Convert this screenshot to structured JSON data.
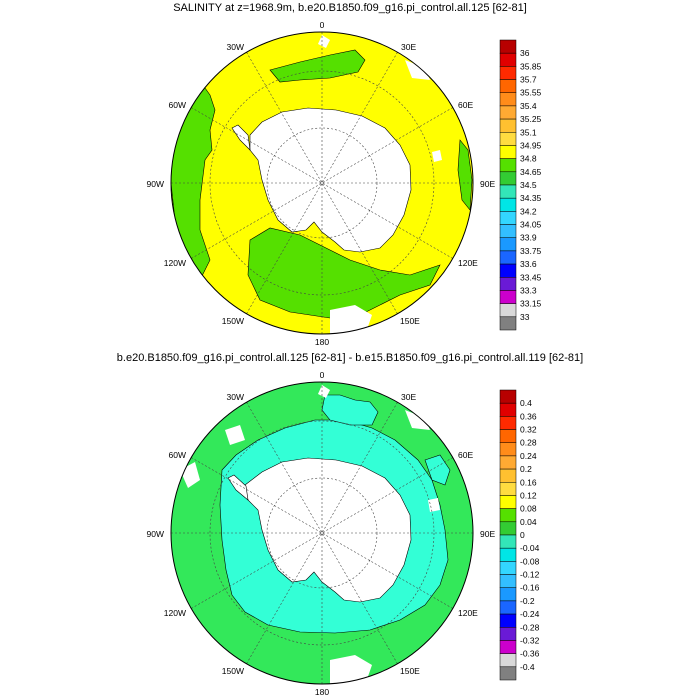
{
  "panels": [
    {
      "title": "SALINITY at z=1968.9m, b.e20.B1850.f09_g16.pi_control.all.125 [62-81]",
      "lon_labels": {
        "top": "0",
        "top_right": "30E",
        "right_upper": "60E",
        "right": "90E",
        "right_lower": "120E",
        "bottom_right": "150E",
        "bottom": "180",
        "bottom_left": "150W",
        "left_lower": "120W",
        "left": "90W",
        "left_upper": "60W",
        "top_left": "30W"
      },
      "colorbar": {
        "colors": [
          "#b80000",
          "#e00000",
          "#ff2a00",
          "#ff6600",
          "#ff8c1a",
          "#ffaa33",
          "#ffc030",
          "#ffdc40",
          "#ffff00",
          "#55e000",
          "#33cc33",
          "#33e6b8",
          "#00e6e6",
          "#33d6ff",
          "#33bfff",
          "#1a99ff",
          "#1a66ff",
          "#0000ff",
          "#6a1ad6",
          "#cc00cc",
          "#d9d9d9",
          "#808080"
        ],
        "labels": [
          "36",
          "35.85",
          "35.7",
          "35.55",
          "35.4",
          "35.25",
          "35.1",
          "34.95",
          "34.8",
          "34.65",
          "34.5",
          "34.35",
          "34.2",
          "34.05",
          "33.9",
          "33.75",
          "33.6",
          "33.45",
          "33.3",
          "33.15",
          "33"
        ]
      }
    },
    {
      "title": "b.e20.B1850.f09_g16.pi_control.all.125 [62-81] - b.e15.B1850.f09_g16.pi_control.all.119 [62-81]",
      "lon_labels": {
        "top": "0",
        "top_right": "30E",
        "right_upper": "60E",
        "right": "90E",
        "right_lower": "120E",
        "bottom_right": "150E",
        "bottom": "180",
        "bottom_left": "150W",
        "left_lower": "120W",
        "left": "90W",
        "left_upper": "60W",
        "top_left": "30W"
      },
      "colorbar": {
        "colors": [
          "#b80000",
          "#e00000",
          "#ff2a00",
          "#ff6600",
          "#ff8c1a",
          "#ffaa33",
          "#ffc030",
          "#ffdc40",
          "#ffff00",
          "#55e000",
          "#33cc33",
          "#33e6b8",
          "#00e6e6",
          "#33d6ff",
          "#33bfff",
          "#1a99ff",
          "#1a66ff",
          "#0000ff",
          "#6a1ad6",
          "#cc00cc",
          "#d9d9d9",
          "#808080"
        ],
        "labels": [
          "0.4",
          "0.36",
          "0.32",
          "0.28",
          "0.24",
          "0.2",
          "0.16",
          "0.12",
          "0.08",
          "0.04",
          "0",
          "-0.04",
          "-0.08",
          "-0.12",
          "-0.16",
          "-0.2",
          "-0.24",
          "-0.28",
          "-0.32",
          "-0.36",
          "-0.4"
        ]
      }
    }
  ],
  "field_colors": {
    "top_fill_yellow": "#ffff00",
    "top_fill_green": "#55e000",
    "bottom_fill_green": "#33e85a",
    "bottom_fill_cyan": "#33ffd6",
    "land": "#ffffff"
  }
}
